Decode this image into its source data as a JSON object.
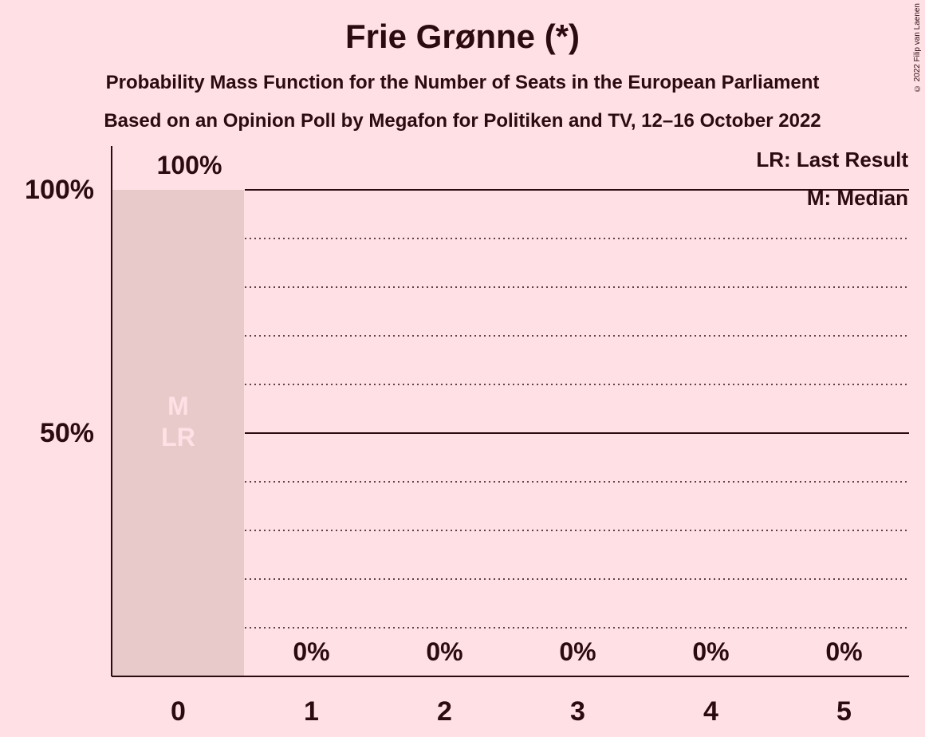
{
  "chart_data": {
    "type": "bar",
    "title": "Frie Grønne (*)",
    "subtitle_line1": "Probability Mass Function for the Number of Seats in the European Parliament",
    "subtitle_line2": "Based on an Opinion Poll by Megafon for Politiken and TV, 12–16 October 2022",
    "categories": [
      "0",
      "1",
      "2",
      "3",
      "4",
      "5"
    ],
    "values": [
      100,
      0,
      0,
      0,
      0,
      0
    ],
    "value_labels": [
      "100%",
      "0%",
      "0%",
      "0%",
      "0%",
      "0%"
    ],
    "ylim": [
      0,
      100
    ],
    "yticks": [
      {
        "value": 50,
        "label": "50%"
      },
      {
        "value": 100,
        "label": "100%"
      }
    ],
    "grid_minor_step": 10,
    "median_seat": "0",
    "last_result_seat": "0",
    "median_marker": "M",
    "last_result_marker": "LR",
    "legend": [
      "LR: Last Result",
      "M: Median"
    ],
    "legend_position": "top-right",
    "colors": {
      "background": "#FFE0E5",
      "bar": "#E8CACA",
      "text": "#2B0A10",
      "marker_text": "#FFE0E5"
    }
  },
  "copyright": "© 2022 Filip van Laenen"
}
